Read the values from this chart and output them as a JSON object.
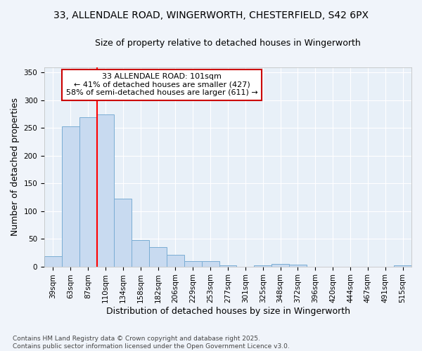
{
  "title_line1": "33, ALLENDALE ROAD, WINGERWORTH, CHESTERFIELD, S42 6PX",
  "title_line2": "Size of property relative to detached houses in Wingerworth",
  "xlabel": "Distribution of detached houses by size in Wingerworth",
  "ylabel": "Number of detached properties",
  "categories": [
    "39sqm",
    "63sqm",
    "87sqm",
    "110sqm",
    "134sqm",
    "158sqm",
    "182sqm",
    "206sqm",
    "229sqm",
    "253sqm",
    "277sqm",
    "301sqm",
    "325sqm",
    "348sqm",
    "372sqm",
    "396sqm",
    "420sqm",
    "444sqm",
    "467sqm",
    "491sqm",
    "515sqm"
  ],
  "values": [
    18,
    253,
    269,
    274,
    122,
    48,
    35,
    21,
    9,
    9,
    2,
    0,
    2,
    4,
    3,
    0,
    0,
    0,
    0,
    0,
    2
  ],
  "bar_color": "#c8daf0",
  "bar_edge_color": "#7aadd4",
  "background_color": "#f0f4fa",
  "plot_bg_color": "#e8f0f8",
  "grid_color": "#ffffff",
  "red_line_index": 2,
  "annotation_text": "33 ALLENDALE ROAD: 101sqm\n← 41% of detached houses are smaller (427)\n58% of semi-detached houses are larger (611) →",
  "annotation_box_color": "#ffffff",
  "annotation_box_edge_color": "#cc0000",
  "ylim": [
    0,
    360
  ],
  "yticks": [
    0,
    50,
    100,
    150,
    200,
    250,
    300,
    350
  ],
  "footer_line1": "Contains HM Land Registry data © Crown copyright and database right 2025.",
  "footer_line2": "Contains public sector information licensed under the Open Government Licence v3.0.",
  "title_fontsize": 10,
  "subtitle_fontsize": 9,
  "axis_label_fontsize": 9,
  "tick_fontsize": 7.5,
  "annotation_fontsize": 8,
  "footer_fontsize": 6.5
}
